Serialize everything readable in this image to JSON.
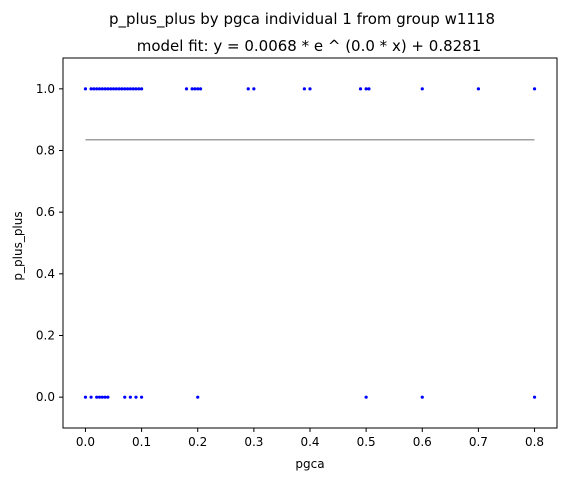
{
  "chart_data": {
    "type": "scatter",
    "title": "p_plus_plus by pgca individual 1 from group w1118",
    "subtitle": "model fit: y = 0.0068 * e ^ (0.0 * x) + 0.8281",
    "xlabel": "pgca",
    "ylabel": "p_plus_plus",
    "xlim": [
      -0.04,
      0.84
    ],
    "ylim": [
      -0.1,
      1.1
    ],
    "x_ticks": [
      "0.0",
      "0.1",
      "0.2",
      "0.3",
      "0.4",
      "0.5",
      "0.6",
      "0.7",
      "0.8"
    ],
    "y_ticks": [
      "0.0",
      "0.2",
      "0.4",
      "0.6",
      "0.8",
      "1.0"
    ],
    "grid": false,
    "colors": {
      "points": "#0000ff",
      "fit_line": "#a0a0a0"
    },
    "series": [
      {
        "kind": "scatter",
        "points": [
          [
            0.0,
            1.0
          ],
          [
            0.01,
            1.0
          ],
          [
            0.015,
            1.0
          ],
          [
            0.02,
            1.0
          ],
          [
            0.025,
            1.0
          ],
          [
            0.03,
            1.0
          ],
          [
            0.035,
            1.0
          ],
          [
            0.04,
            1.0
          ],
          [
            0.045,
            1.0
          ],
          [
            0.05,
            1.0
          ],
          [
            0.055,
            1.0
          ],
          [
            0.06,
            1.0
          ],
          [
            0.065,
            1.0
          ],
          [
            0.07,
            1.0
          ],
          [
            0.075,
            1.0
          ],
          [
            0.08,
            1.0
          ],
          [
            0.085,
            1.0
          ],
          [
            0.09,
            1.0
          ],
          [
            0.095,
            1.0
          ],
          [
            0.1,
            1.0
          ],
          [
            0.18,
            1.0
          ],
          [
            0.19,
            1.0
          ],
          [
            0.195,
            1.0
          ],
          [
            0.2,
            1.0
          ],
          [
            0.205,
            1.0
          ],
          [
            0.29,
            1.0
          ],
          [
            0.3,
            1.0
          ],
          [
            0.39,
            1.0
          ],
          [
            0.4,
            1.0
          ],
          [
            0.49,
            1.0
          ],
          [
            0.5,
            1.0
          ],
          [
            0.505,
            1.0
          ],
          [
            0.6,
            1.0
          ],
          [
            0.7,
            1.0
          ],
          [
            0.8,
            1.0
          ],
          [
            0.0,
            0.0
          ],
          [
            0.01,
            0.0
          ],
          [
            0.02,
            0.0
          ],
          [
            0.025,
            0.0
          ],
          [
            0.03,
            0.0
          ],
          [
            0.035,
            0.0
          ],
          [
            0.04,
            0.0
          ],
          [
            0.07,
            0.0
          ],
          [
            0.08,
            0.0
          ],
          [
            0.09,
            0.0
          ],
          [
            0.1,
            0.0
          ],
          [
            0.2,
            0.0
          ],
          [
            0.5,
            0.0
          ],
          [
            0.6,
            0.0
          ],
          [
            0.8,
            0.0
          ]
        ]
      },
      {
        "kind": "line",
        "x": [
          0.0,
          0.8
        ],
        "y": [
          0.8349,
          0.8349
        ]
      }
    ]
  }
}
